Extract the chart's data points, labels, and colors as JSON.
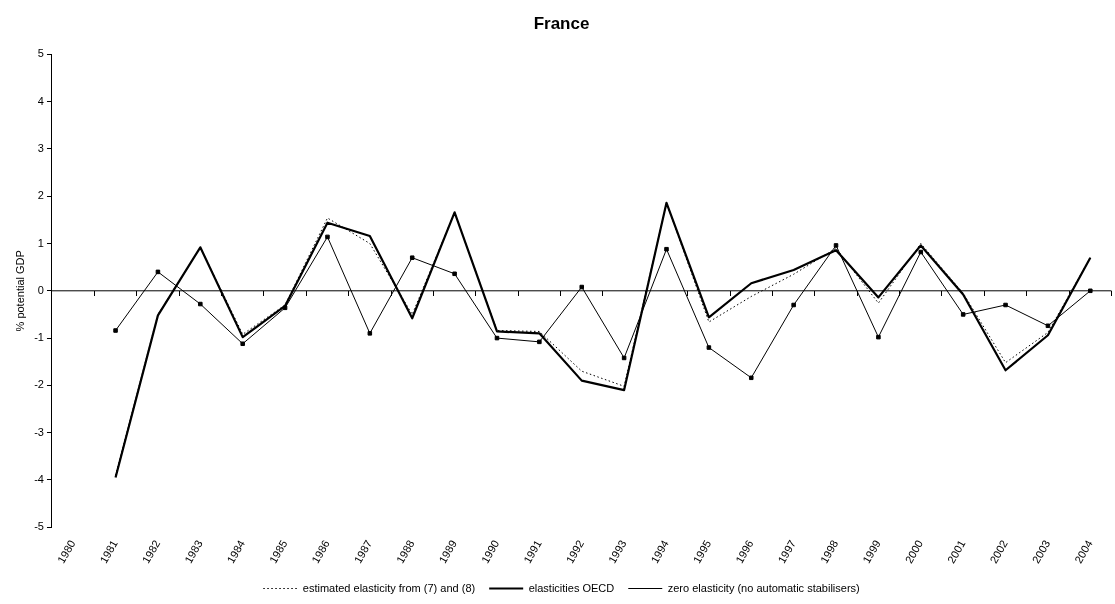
{
  "chart_data": {
    "type": "line",
    "title": "France",
    "ylabel": "% potential GDP",
    "categories": [
      "1980",
      "1981",
      "1982",
      "1983",
      "1984",
      "1985",
      "1986",
      "1987",
      "1988",
      "1989",
      "1990",
      "1991",
      "1992",
      "1993",
      "1994",
      "1995",
      "1996",
      "1997",
      "1998",
      "1999",
      "2000",
      "2001",
      "2002",
      "2003",
      "2004"
    ],
    "series": [
      {
        "name": "estimated elasticity from (7) and (8)",
        "color": "#000000",
        "line_style": "dotted",
        "marker": "none",
        "values": [
          null,
          -3.9,
          -0.5,
          0.92,
          -0.92,
          -0.3,
          1.54,
          1.0,
          -0.5,
          1.66,
          -0.84,
          -0.86,
          -1.7,
          -2.02,
          1.86,
          -0.66,
          -0.12,
          0.35,
          0.9,
          -0.26,
          1.0,
          -0.05,
          -1.52,
          -0.88,
          0.7
        ]
      },
      {
        "name": "elasticities OECD",
        "color": "#000000",
        "line_style": "solid",
        "marker": "none",
        "values": [
          null,
          -3.95,
          -0.52,
          0.92,
          -0.98,
          -0.32,
          1.44,
          1.16,
          -0.58,
          1.66,
          -0.86,
          -0.9,
          -1.9,
          -2.1,
          1.86,
          -0.56,
          0.16,
          0.44,
          0.86,
          -0.14,
          0.96,
          -0.08,
          -1.68,
          -0.94,
          0.7
        ]
      },
      {
        "name": "zero elasticity (no automatic stabilisers)",
        "color": "#000000",
        "line_style": "solid",
        "marker": "square",
        "values": [
          null,
          -0.84,
          0.4,
          -0.28,
          -1.12,
          -0.36,
          1.14,
          -0.9,
          0.7,
          0.36,
          -1.0,
          -1.08,
          0.08,
          -1.42,
          0.88,
          -1.2,
          -1.84,
          -0.3,
          0.96,
          -0.98,
          0.82,
          -0.5,
          -0.3,
          -0.74,
          0
        ]
      }
    ],
    "ref_lines": [
      {
        "axis": "y",
        "value": 0,
        "color": "#000000",
        "line_style": "solid"
      }
    ],
    "ylim": [
      -5,
      5
    ],
    "yticks": [
      -5,
      -4,
      -3,
      -2,
      -1,
      0,
      1,
      2,
      3,
      4,
      5
    ],
    "grid": false,
    "legend": "bottom"
  }
}
